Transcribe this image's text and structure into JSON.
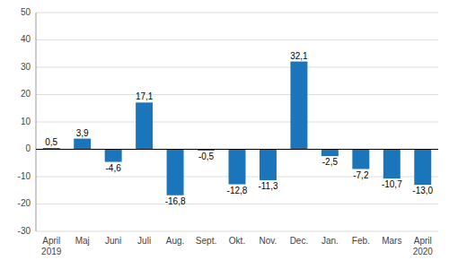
{
  "chart_data": {
    "type": "bar",
    "categories": [
      "April\n2019",
      "Maj",
      "Juni",
      "Juli",
      "Aug.",
      "Sept.",
      "Okt.",
      "Nov.",
      "Dec.",
      "Jan.",
      "Feb.",
      "Mars",
      "April\n2020"
    ],
    "values": [
      0.5,
      3.9,
      -4.6,
      17.1,
      -16.8,
      -0.5,
      -12.8,
      -11.3,
      32.1,
      -2.5,
      -7.2,
      -10.7,
      -13.0
    ],
    "value_labels": [
      "0,5",
      "3,9",
      "-4,6",
      "17,1",
      "-16,8",
      "-0,5",
      "-12,8",
      "-11,3",
      "32,1",
      "-2,5",
      "-7,2",
      "-10,7",
      "-13,0"
    ],
    "data_labels": true,
    "color": "#1b75bb",
    "ylim": [
      -30,
      50
    ],
    "yticks": [
      -30,
      -20,
      -10,
      0,
      10,
      20,
      30,
      40,
      50
    ],
    "grid": true
  }
}
